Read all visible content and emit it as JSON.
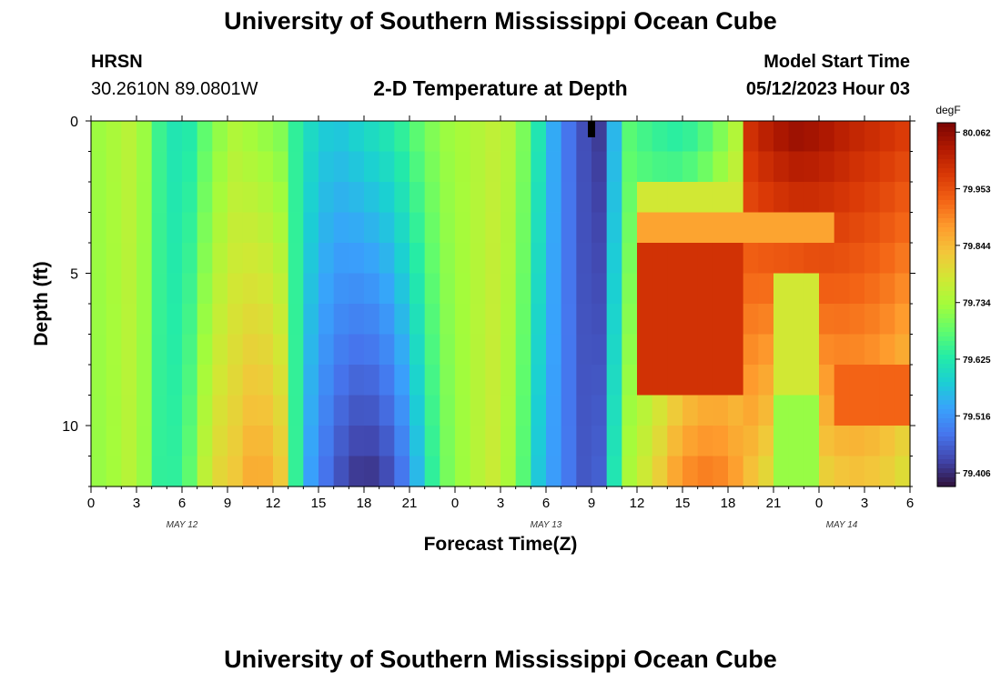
{
  "page": {
    "title_top": "University of Southern Mississippi Ocean Cube",
    "title_bottom": "University of Southern Mississippi Ocean Cube",
    "station": "HRSN",
    "coords": "30.2610N  89.0801W",
    "plot_title": "2-D Temperature at Depth",
    "model_start_label": "Model Start Time",
    "model_start_value": "05/12/2023 Hour 03"
  },
  "chart_data": {
    "type": "heatmap",
    "title": "2-D Temperature at Depth",
    "xlabel": "Forecast Time(Z)",
    "ylabel": "Depth (ft)",
    "x_tick_labels": [
      "0",
      "3",
      "6",
      "9",
      "12",
      "15",
      "18",
      "21",
      "0",
      "3",
      "6",
      "9",
      "12",
      "15",
      "18",
      "21",
      "0",
      "3",
      "6"
    ],
    "date_labels": [
      {
        "label": "MAY 12",
        "tick_index": 2
      },
      {
        "label": "MAY 13",
        "tick_index": 10
      },
      {
        "label": "MAY 14",
        "tick_index": 16.5
      }
    ],
    "x_hours": [
      0,
      54
    ],
    "y_tick_labels": [
      "0",
      "5",
      "10"
    ],
    "ylim": [
      0,
      12
    ],
    "colorbar": {
      "unit": "degF",
      "tick_labels": [
        "80.062",
        "79.953",
        "79.844",
        "79.734",
        "79.625",
        "79.516",
        "79.406"
      ],
      "range": [
        79.38,
        80.08
      ]
    },
    "colors": {
      "scale": [
        "#30123b",
        "#4145ab",
        "#4675ed",
        "#39a2fc",
        "#1bcfd4",
        "#24eca6",
        "#61fc6c",
        "#a4fc3b",
        "#d1e834",
        "#f3c63a",
        "#fe9b2d",
        "#f36315",
        "#d93806",
        "#b11901",
        "#7a0403"
      ]
    },
    "grid_cols": 54,
    "grid_rows": 12,
    "column_profiles_degF": [
      [
        0,
        79.72,
        79.72
      ],
      [
        1,
        79.73,
        79.72
      ],
      [
        3,
        79.76,
        79.76
      ],
      [
        4.5,
        79.65,
        79.64
      ],
      [
        6,
        79.6,
        79.64
      ],
      [
        8,
        79.7,
        79.8
      ],
      [
        9.5,
        79.74,
        79.83
      ],
      [
        11,
        79.72,
        79.88
      ],
      [
        12.5,
        79.7,
        79.83
      ],
      [
        14,
        79.61,
        79.55
      ],
      [
        16,
        79.57,
        79.45
      ],
      [
        18,
        79.6,
        79.4
      ],
      [
        20,
        79.63,
        79.44
      ],
      [
        21.5,
        79.68,
        79.55
      ],
      [
        23,
        79.72,
        79.68
      ],
      [
        25,
        79.74,
        79.74
      ],
      [
        26.5,
        79.76,
        79.77
      ],
      [
        28,
        79.74,
        79.72
      ],
      [
        29.5,
        79.62,
        79.57
      ],
      [
        31,
        79.5,
        79.5
      ],
      [
        32.5,
        79.44,
        79.45
      ],
      [
        33,
        79.4,
        79.43
      ],
      [
        33.5,
        79.42,
        79.46
      ],
      [
        34.5,
        79.55,
        79.62
      ],
      [
        35,
        79.68,
        79.72
      ],
      [
        37,
        79.64,
        79.8
      ],
      [
        39,
        79.62,
        79.9
      ],
      [
        41,
        79.67,
        79.92
      ],
      [
        42.5,
        79.74,
        79.88
      ],
      [
        43.5,
        80.0,
        79.83
      ],
      [
        45,
        80.04,
        79.78
      ],
      [
        46.5,
        80.06,
        79.76
      ],
      [
        48,
        80.05,
        79.8
      ],
      [
        50,
        80.02,
        79.83
      ],
      [
        52,
        80.0,
        79.82
      ],
      [
        54,
        79.98,
        79.78
      ]
    ],
    "highlights": [
      {
        "hours": [
          36.5,
          43
        ],
        "depth_ft": [
          2.5,
          3.5
        ],
        "value": 79.78
      },
      {
        "hours": [
          36.5,
          49
        ],
        "depth_ft": [
          3.5,
          4.5
        ],
        "value": 79.87
      },
      {
        "hours": [
          36,
          43.5
        ],
        "depth_ft": [
          4.5,
          9.5
        ],
        "value": 79.99
      },
      {
        "hours": [
          45,
          48.5
        ],
        "depth_ft": [
          5.5,
          9
        ],
        "value": 79.78
      },
      {
        "hours": [
          45,
          48
        ],
        "depth_ft": [
          9,
          12
        ],
        "value": 79.72
      },
      {
        "hours": [
          49,
          54
        ],
        "depth_ft": [
          8,
          10
        ],
        "value": 79.93
      }
    ],
    "markers": [
      {
        "hour": 33,
        "depth_ft": 0,
        "label": "black marker"
      }
    ]
  }
}
